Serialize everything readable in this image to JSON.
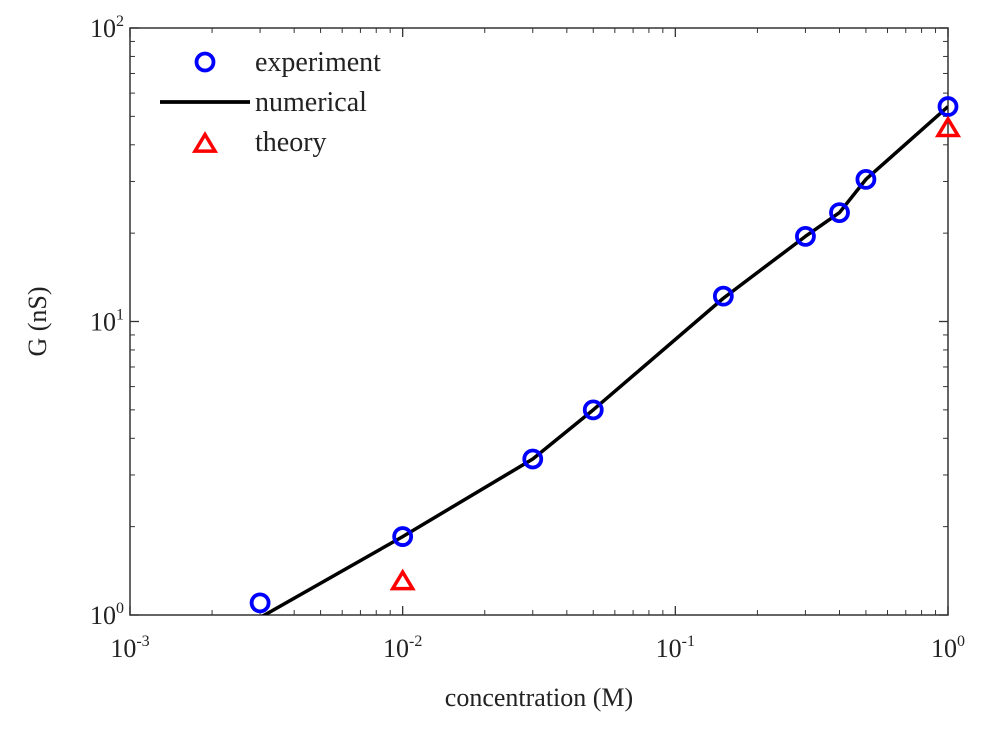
{
  "chart_data": {
    "type": "line",
    "xlabel": "concentration (M)",
    "ylabel": "G (nS)",
    "x_scale": "log",
    "y_scale": "log",
    "xlim": [
      0.001,
      1
    ],
    "ylim": [
      1,
      100
    ],
    "grid": false,
    "legend_position": "top-left",
    "x_ticks": [
      {
        "base": "10",
        "exp": "-3",
        "value": 0.001
      },
      {
        "base": "10",
        "exp": "-2",
        "value": 0.01
      },
      {
        "base": "10",
        "exp": "-1",
        "value": 0.1
      },
      {
        "base": "10",
        "exp": "0",
        "value": 1
      }
    ],
    "y_ticks": [
      {
        "base": "10",
        "exp": "0",
        "value": 1
      },
      {
        "base": "10",
        "exp": "1",
        "value": 10
      },
      {
        "base": "10",
        "exp": "2",
        "value": 100
      }
    ],
    "series": [
      {
        "name": "experiment",
        "kind": "scatter",
        "marker": "circle",
        "color": "#0000ff",
        "x": [
          0.003,
          0.01,
          0.03,
          0.05,
          0.15,
          0.3,
          0.4,
          0.5,
          1.0
        ],
        "y": [
          1.1,
          1.85,
          3.4,
          5.0,
          12.2,
          19.5,
          23.5,
          30.5,
          54.0
        ]
      },
      {
        "name": "numerical",
        "kind": "line",
        "color": "#000000",
        "x": [
          0.003,
          0.01,
          0.03,
          0.05,
          0.15,
          0.3,
          0.4,
          0.5,
          1.0
        ],
        "y": [
          0.98,
          1.85,
          3.4,
          5.0,
          12.0,
          19.5,
          23.5,
          30.5,
          54.0
        ]
      },
      {
        "name": "theory",
        "kind": "scatter",
        "marker": "triangle",
        "color": "#ff0000",
        "x": [
          0.01,
          1.0
        ],
        "y": [
          1.3,
          45.5
        ]
      }
    ]
  }
}
